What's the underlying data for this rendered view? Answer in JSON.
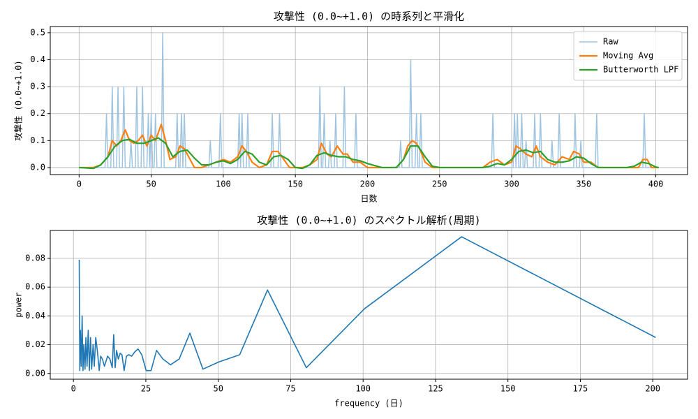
{
  "chart_data": [
    {
      "type": "line",
      "title": "攻撃性 (0.0~+1.0) の時系列と平滑化",
      "xlabel": "日数",
      "ylabel": "攻撃性 (0.0~+1.0)",
      "xlim": [
        -20,
        422
      ],
      "ylim": [
        -0.026,
        0.523
      ],
      "xticks": [
        0,
        50,
        100,
        150,
        200,
        250,
        300,
        350,
        400
      ],
      "yticks": [
        {
          "value": 0,
          "label": "0.0"
        },
        0.1,
        0.2,
        0.3,
        0.4,
        0.5
      ],
      "grid": true,
      "legend": "upper right",
      "series": [
        {
          "name": "Raw",
          "color": "#9fc4e0",
          "x": [
            0,
            18,
            19,
            20,
            22,
            23,
            24,
            26,
            27,
            28,
            30,
            31,
            32,
            35,
            36,
            37,
            39,
            40,
            41,
            43,
            44,
            45,
            47,
            48,
            49,
            50,
            51,
            52,
            53,
            54,
            57,
            58,
            59,
            67,
            68,
            69,
            70,
            71,
            72,
            73,
            74,
            90,
            91,
            92,
            97,
            98,
            99,
            110,
            111,
            112,
            113,
            114,
            116,
            117,
            118,
            133,
            134,
            135,
            138,
            139,
            140,
            166,
            167,
            168,
            169,
            170,
            171,
            173,
            174,
            175,
            177,
            178,
            179,
            183,
            184,
            185,
            191,
            192,
            193,
            222,
            223,
            224,
            229,
            230,
            231,
            233,
            234,
            235,
            236,
            237,
            238,
            286,
            287,
            288,
            301,
            302,
            303,
            304,
            305,
            306,
            307,
            308,
            309,
            310,
            311,
            315,
            316,
            317,
            319,
            320,
            321,
            327,
            328,
            329,
            332,
            333,
            334,
            343,
            344,
            345,
            347,
            348,
            349,
            358,
            359,
            360,
            391,
            392,
            393,
            402
          ],
          "values": [
            0,
            0,
            0.2,
            0,
            0,
            0.3,
            0,
            0,
            0.3,
            0,
            0,
            0.3,
            0,
            0,
            0.1,
            0,
            0,
            0.3,
            0,
            0,
            0.3,
            0,
            0,
            0.2,
            0,
            0.2,
            0,
            0,
            0.2,
            0,
            0,
            0.5,
            0,
            0,
            0.2,
            0,
            0,
            0.2,
            0,
            0.2,
            0,
            0,
            0.1,
            0,
            0,
            0.2,
            0,
            0,
            0.2,
            0,
            0.2,
            0,
            0,
            0.2,
            0,
            0,
            0.2,
            0,
            0,
            0.2,
            0,
            0,
            0.3,
            0,
            0,
            0.2,
            0,
            0,
            0.1,
            0,
            0,
            0.2,
            0,
            0,
            0.3,
            0,
            0,
            0.2,
            0,
            0,
            0.1,
            0,
            0,
            0.4,
            0,
            0,
            0.2,
            0,
            0,
            0.2,
            0,
            0,
            0.2,
            0,
            0,
            0.2,
            0,
            0.2,
            0,
            0,
            0.2,
            0,
            0,
            0.1,
            0,
            0,
            0.2,
            0,
            0,
            0.2,
            0,
            0,
            0.1,
            0,
            0,
            0.2,
            0,
            0,
            0.2,
            0,
            0,
            0.1,
            0,
            0,
            0.2,
            0,
            0,
            0.2,
            0,
            0
          ]
        },
        {
          "name": "Moving Avg",
          "color": "#ff7f0e",
          "x": [
            0,
            5,
            10,
            15,
            20,
            23,
            26,
            29,
            32,
            35,
            38,
            41,
            44,
            47,
            50,
            53,
            57,
            60,
            63,
            67,
            70,
            73,
            76,
            80,
            85,
            90,
            95,
            100,
            105,
            110,
            113,
            116,
            120,
            125,
            130,
            134,
            138,
            142,
            146,
            150,
            155,
            160,
            165,
            168,
            172,
            175,
            179,
            183,
            186,
            190,
            195,
            200,
            210,
            220,
            225,
            228,
            231,
            234,
            237,
            240,
            245,
            250,
            260,
            270,
            280,
            285,
            290,
            295,
            300,
            303,
            306,
            310,
            314,
            317,
            320,
            325,
            330,
            335,
            340,
            343,
            347,
            350,
            355,
            360,
            365,
            370,
            380,
            388,
            391,
            394,
            397,
            400,
            402
          ],
          "values": [
            0,
            0,
            0,
            0.01,
            0.04,
            0.1,
            0.08,
            0.1,
            0.14,
            0.1,
            0.09,
            0.1,
            0.12,
            0.08,
            0.12,
            0.1,
            0.16,
            0.1,
            0.03,
            0.04,
            0.08,
            0.07,
            0.04,
            0,
            0,
            0.01,
            0.02,
            0.03,
            0.02,
            0.04,
            0.08,
            0.06,
            0.02,
            0,
            0.01,
            0.06,
            0.06,
            0.03,
            0,
            0,
            0,
            0.01,
            0.03,
            0.09,
            0.05,
            0.04,
            0.08,
            0.05,
            0.05,
            0.02,
            0.02,
            0,
            0,
            0,
            0.03,
            0.08,
            0.1,
            0.09,
            0.06,
            0.02,
            0,
            0,
            0,
            0,
            0,
            0.02,
            0.03,
            0.01,
            0.02,
            0.08,
            0.07,
            0.05,
            0.04,
            0.08,
            0.04,
            0.02,
            0.01,
            0.04,
            0.03,
            0.06,
            0.05,
            0.02,
            0.02,
            0,
            0,
            0,
            0,
            0,
            0.03,
            0.03,
            0,
            0,
            0
          ]
        },
        {
          "name": "Butterworth LPF",
          "color": "#2ca02c",
          "x": [
            0,
            10,
            15,
            20,
            25,
            30,
            35,
            40,
            45,
            50,
            55,
            60,
            65,
            70,
            75,
            80,
            85,
            90,
            95,
            100,
            105,
            110,
            115,
            120,
            125,
            130,
            135,
            140,
            145,
            150,
            155,
            160,
            165,
            170,
            175,
            180,
            185,
            190,
            195,
            200,
            210,
            220,
            225,
            230,
            235,
            240,
            245,
            250,
            260,
            270,
            280,
            285,
            290,
            295,
            300,
            305,
            310,
            315,
            320,
            325,
            330,
            335,
            340,
            345,
            350,
            355,
            360,
            370,
            380,
            385,
            390,
            395,
            400,
            402
          ],
          "values": [
            0,
            -0.003,
            0.01,
            0.04,
            0.08,
            0.1,
            0.105,
            0.09,
            0.09,
            0.1,
            0.11,
            0.09,
            0.04,
            0.06,
            0.065,
            0.035,
            0.01,
            0.01,
            0.02,
            0.025,
            0.015,
            0.03,
            0.06,
            0.05,
            0.02,
            0.01,
            0.04,
            0.045,
            0.03,
            0,
            -0.003,
            0.01,
            0.045,
            0.055,
            0.045,
            0.04,
            0.04,
            0.03,
            0.025,
            0.015,
            0,
            0,
            0.03,
            0.08,
            0.08,
            0.04,
            0.005,
            0,
            0,
            0,
            0,
            0.005,
            0.015,
            0.01,
            0.03,
            0.06,
            0.065,
            0.055,
            0.06,
            0.03,
            0.02,
            0.02,
            0.025,
            0.04,
            0.035,
            0.015,
            0,
            0,
            0,
            0.005,
            0.02,
            0.015,
            0.002,
            0
          ]
        }
      ]
    },
    {
      "type": "line",
      "title": "攻撃性 (0.0~+1.0) のスペクトル解析(周期)",
      "xlabel": "frequency (日)",
      "ylabel": "power",
      "xlim": [
        -8,
        212
      ],
      "ylim": [
        -0.004,
        0.0994
      ],
      "xticks": [
        0,
        25,
        50,
        75,
        100,
        125,
        150,
        175,
        200
      ],
      "yticks": [
        {
          "value": 0,
          "label": "0.00"
        },
        {
          "value": 0.02,
          "label": "0.02"
        },
        {
          "value": 0.04,
          "label": "0.04"
        },
        {
          "value": 0.06,
          "label": "0.06"
        },
        {
          "value": 0.08,
          "label": "0.08"
        }
      ],
      "grid": true,
      "series": [
        {
          "color": "#1f77b4",
          "x": [
            2.0,
            2.2,
            2.4,
            2.7,
            3.0,
            3.3,
            3.6,
            4.0,
            4.3,
            4.7,
            5.1,
            5.5,
            5.9,
            6.3,
            6.8,
            7.2,
            7.7,
            8.3,
            8.9,
            9.4,
            10,
            10.7,
            11.8,
            12.6,
            13.4,
            13.9,
            14.4,
            14.9,
            15.5,
            16.1,
            16.75,
            17.5,
            18.3,
            19.1,
            20.1,
            21.2,
            22.3,
            23.6,
            25.1,
            26.8,
            28.7,
            30.9,
            33.5,
            36.5,
            40.2,
            44.7,
            50.25,
            57.4,
            67,
            80.4,
            100.5,
            134,
            201
          ],
          "values": [
            0.079,
            0.002,
            0.03,
            0.005,
            0.04,
            0.002,
            0.02,
            0.003,
            0.025,
            0.005,
            0.03,
            0.002,
            0.025,
            0.003,
            0.02,
            0.005,
            0.025,
            0.015,
            0.002,
            0.012,
            0.01,
            0.005,
            0.012,
            0.01,
            0.004,
            0.027,
            0.004,
            0.016,
            0.01,
            0.014,
            0.013,
            0.002,
            0.012,
            0.013,
            0.012,
            0.015,
            0.017,
            0.013,
            0.002,
            0.002,
            0.016,
            0.01,
            0.006,
            0.01,
            0.028,
            0.003,
            0.008,
            0.013,
            0.058,
            0.004,
            0.045,
            0.095,
            0.025
          ]
        }
      ]
    }
  ]
}
